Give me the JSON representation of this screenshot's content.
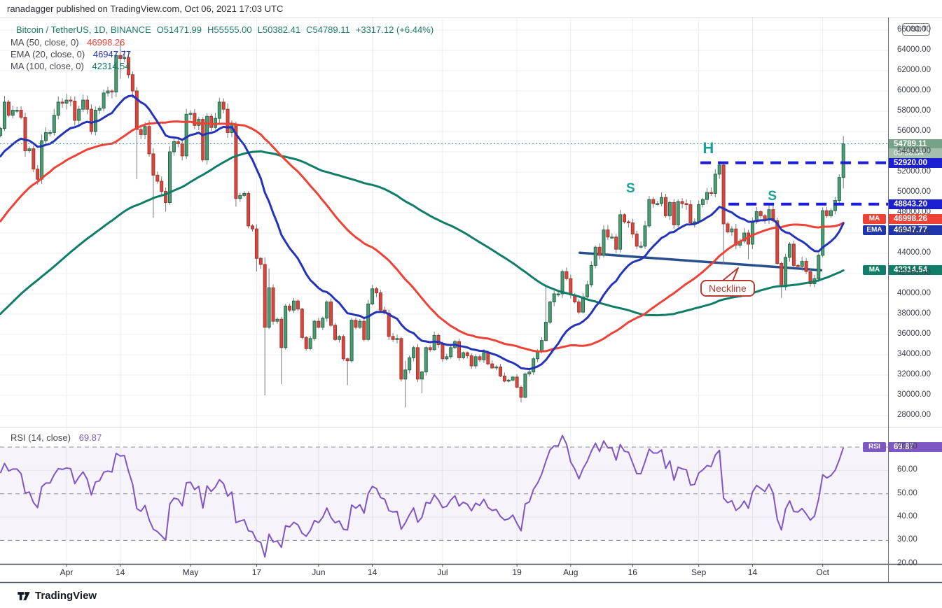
{
  "header": {
    "published_line": "ranadagger published on TradingView.com, Oct 06, 2021 17:03 UTC"
  },
  "legend": {
    "symbol": "Bitcoin / TetherUS, 1D, BINANCE",
    "open": "O51471.99",
    "high": "H55555.00",
    "low": "L50382.41",
    "close": "C54789.11",
    "change": "+3317.12 (+6.44%)",
    "ohlc_color": "#1d7a66",
    "indicators": [
      {
        "label": "MA (50, close, 0)",
        "value": "46998.26",
        "color": "#ee4237"
      },
      {
        "label": "EMA (20, close, 0)",
        "value": "46947.77",
        "color": "#2433b8"
      },
      {
        "label": "MA (100, close, 0)",
        "value": "42314.54",
        "color": "#107d68"
      }
    ],
    "rsi_label": "RSI (14, close)",
    "rsi_value": "69.87",
    "rsi_color": "#7e57c2"
  },
  "axis": {
    "currency_button": "USDT"
  },
  "badges": {
    "last_price": "54789.11",
    "countdown": "06:56:34",
    "level_1": "52920.00",
    "level_2": "48843.20",
    "ma50_pill": "MA",
    "ma50": "46998.26",
    "ema20_pill": "EMA",
    "ema20": "46947.77",
    "ma100_pill": "MA",
    "ma100": "42314.54",
    "rsi_pill": "RSI",
    "rsi": "69.87",
    "colors": {
      "last_price_bg": "#76a287",
      "countdown_bg": "#a3bfae",
      "level_bg": "#1c1fd1",
      "ma50_bg": "#ee4237",
      "ema20_bg": "#1e35ab",
      "ma100_bg": "#107d68",
      "rsi_bg": "#7e57c2"
    }
  },
  "annotations": {
    "left_shoulder": {
      "text": "S",
      "day": 152.5,
      "price": 50330
    },
    "head": {
      "text": "H",
      "day": 171.3,
      "price": 54350
    },
    "right_shoulder": {
      "text": "S",
      "day": 186.8,
      "price": 49600
    },
    "neckline_callout": {
      "text": "Neckline",
      "day": 169.4,
      "price": 41350
    },
    "letter_color": "#1aa096",
    "callout_color": "#b63a30"
  },
  "watermark": {
    "logo_text": "TradingView"
  },
  "time_axis": {
    "ticks": [
      {
        "day": 16,
        "label": "Apr"
      },
      {
        "day": 29,
        "label": "14"
      },
      {
        "day": 46,
        "label": "May"
      },
      {
        "day": 62,
        "label": "17"
      },
      {
        "day": 77,
        "label": "Jun"
      },
      {
        "day": 90,
        "label": "14"
      },
      {
        "day": 107,
        "label": "Jul"
      },
      {
        "day": 125,
        "label": "19"
      },
      {
        "day": 138,
        "label": "Aug"
      },
      {
        "day": 153,
        "label": "16"
      },
      {
        "day": 169,
        "label": "Sep"
      },
      {
        "day": 182,
        "label": "14"
      },
      {
        "day": 199,
        "label": "Oct"
      }
    ]
  },
  "chart_data": {
    "type": "candlestick",
    "title": "Bitcoin / TetherUS, 1D, BINANCE",
    "price_axis": {
      "min_label": 28000,
      "max_label": 66000,
      "step": 2000
    },
    "last": {
      "open": 51471.99,
      "high": 55555.0,
      "low": 50382.41,
      "close": 54789.11,
      "change": 3317.12,
      "change_pct": 6.44
    },
    "opens_rule": "each open equals previous close",
    "closes": [
      56300,
      58900,
      57600,
      58100,
      58100,
      57400,
      54100,
      54300,
      52300,
      51300,
      55100,
      55900,
      55900,
      57600,
      58900,
      58800,
      59100,
      59000,
      57100,
      58200,
      59100,
      58200,
      56000,
      58100,
      58300,
      59800,
      60000,
      59900,
      63500,
      63200,
      63300,
      61600,
      60000,
      56200,
      55700,
      56500,
      53800,
      51700,
      51100,
      50100,
      49000,
      54000,
      55000,
      54800,
      53600,
      57700,
      57800,
      56600,
      57200,
      53200,
      57500,
      56400,
      57300,
      58900,
      58200,
      55900,
      56700,
      49400,
      49700,
      49900,
      46700,
      46400,
      43500,
      42900,
      36700,
      40600,
      37300,
      37500,
      34700,
      38800,
      38400,
      39300,
      38500,
      35700,
      34600,
      35600,
      37300,
      36700,
      37600,
      39200,
      36900,
      35500,
      35800,
      33600,
      33400,
      37400,
      36700,
      37300,
      35500,
      39000,
      40500,
      40100,
      38400,
      38100,
      35800,
      35500,
      35600,
      31600,
      32500,
      33700,
      34700,
      31600,
      32300,
      34700,
      34500,
      35900,
      35000,
      33600,
      33800,
      34700,
      35300,
      33700,
      34200,
      33900,
      32900,
      33800,
      33500,
      34200,
      33100,
      32700,
      32800,
      31900,
      31400,
      31500,
      31800,
      30800,
      29800,
      32100,
      32300,
      33600,
      34300,
      35400,
      37200,
      39200,
      40000,
      40000,
      42200,
      41500,
      39900,
      39200,
      38200,
      39700,
      40900,
      42800,
      44600,
      43800,
      46300,
      45600,
      45600,
      44400,
      47800,
      47100,
      47000,
      45900,
      44700,
      44700,
      46700,
      49300,
      48900,
      48900,
      49500,
      47700,
      49000,
      46800,
      49100,
      48900,
      48800,
      47000,
      47100,
      48800,
      49300,
      50000,
      49900,
      51800,
      52700,
      46900,
      46100,
      46400,
      44800,
      45200,
      46000,
      44900,
      47100,
      48100,
      47700,
      47300,
      48300,
      47200,
      43000,
      40700,
      43600,
      44900,
      42800,
      42700,
      43200,
      42200,
      41000,
      41500,
      43800,
      48200,
      47700,
      48200,
      49200,
      51471.99,
      54789.11
    ],
    "history_closes_for_indicators": [
      19200,
      19300,
      18800,
      18300,
      18000,
      17800,
      18800,
      19200,
      19300,
      19400,
      21300,
      22800,
      23100,
      23400,
      23800,
      22700,
      23800,
      23200,
      23700,
      24700,
      26400,
      26200,
      27000,
      27300,
      28900,
      29000,
      29300,
      32200,
      33000,
      32000,
      34000,
      36800,
      39400,
      40600,
      40200,
      38200,
      35500,
      34000,
      37400,
      39100,
      36800,
      36000,
      35800,
      36600,
      36000,
      35500,
      30800,
      33000,
      32100,
      32300,
      32300,
      32500,
      30400,
      34300,
      34300,
      34300,
      33100,
      33900,
      36600,
      38300,
      37600,
      39300,
      40500,
      39200,
      46500,
      46500,
      44900,
      48000,
      47500,
      47200,
      48700,
      48000,
      49200,
      52200,
      51700,
      55900,
      56100,
      57500,
      54200,
      48600,
      49700,
      47100,
      46300,
      46200,
      45200,
      49600,
      48400,
      50300,
      48800,
      48900,
      48900,
      51200,
      52400,
      54900,
      55900,
      57800,
      57200,
      61200,
      59000,
      55600
    ],
    "wick_overrides": {
      "28": [
        63850,
        null
      ],
      "29": [
        64850,
        61200
      ],
      "32": [
        null,
        59300
      ],
      "33": [
        null,
        51300
      ],
      "37": [
        null,
        47500
      ],
      "40": [
        null,
        48100
      ],
      "57": [
        null,
        48600
      ],
      "62": [
        null,
        42200
      ],
      "64": [
        43600,
        30000
      ],
      "65": [
        42500,
        null
      ],
      "68": [
        null,
        31100
      ],
      "84": [
        null,
        31000
      ],
      "98": [
        33400,
        28800
      ],
      "102": [
        null,
        30200
      ],
      "126": [
        null,
        29300
      ],
      "132": [
        40900,
        null
      ],
      "175": [
        52920,
        42900
      ],
      "181": [
        null,
        43400
      ],
      "189": [
        null,
        39600
      ],
      "204": [
        55555,
        50382.41
      ]
    },
    "levels": [
      {
        "price": 52920.0,
        "start_day": 169.4
      },
      {
        "price": 48843.2,
        "start_day": 176.2
      }
    ],
    "last_price_line": 54789.11,
    "trendline": {
      "from": {
        "day": 140.2,
        "price": 44050
      },
      "to": {
        "day": 198.6,
        "price": 42330
      }
    },
    "indicators": [
      {
        "type": "SMA",
        "length": 50,
        "color": "#ee4237",
        "last": 46998.26
      },
      {
        "type": "EMA",
        "length": 20,
        "color": "#2433b8",
        "last": 46947.77
      },
      {
        "type": "SMA",
        "length": 100,
        "color": "#107d68",
        "last": 42314.54
      }
    ],
    "rsi": {
      "length": 14,
      "last": 69.87,
      "overbought": 70,
      "mid": 50,
      "oversold": 30,
      "axis_labels": [
        70,
        60,
        50,
        40,
        30,
        20
      ],
      "line_color": "#7e57c2",
      "band_fill": "rgba(126,87,194,0.07)",
      "band_line_color": "#8c8f96"
    },
    "colors": {
      "up": "#4d9c72",
      "up_border": "#26684a",
      "down": "#d5483f",
      "down_border": "#a8352e",
      "wick": "#75787f",
      "grid": "#ebedf1",
      "level_dash": "#1a1dd9",
      "last_price_dot": "#3f9488",
      "trendline": "#2a4f8e"
    }
  }
}
